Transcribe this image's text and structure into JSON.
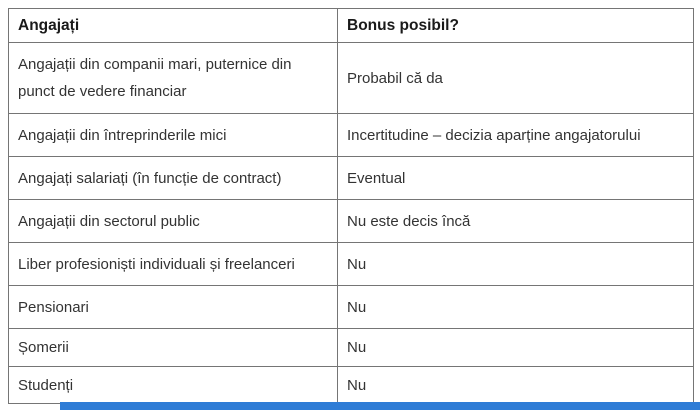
{
  "table": {
    "headers": [
      "Angajați",
      "Bonus posibil?"
    ],
    "rows": [
      [
        "Angajații din companii mari, puternice din punct de vedere financiar",
        "Probabil că da"
      ],
      [
        "Angajații din întreprinderile mici",
        "Incertitudine – decizia aparține angajatorului"
      ],
      [
        "Angajați salariați (în funcție de contract)",
        "Eventual"
      ],
      [
        "Angajații din sectorul public",
        "Nu este decis încă"
      ],
      [
        "Liber profesioniști individuali și freelanceri",
        "Nu"
      ],
      [
        "Pensionari",
        "Nu"
      ],
      [
        "Șomerii",
        "Nu"
      ],
      [
        "Studenți",
        "Nu"
      ]
    ]
  },
  "colors": {
    "table_border": "#757575",
    "text": "#333333",
    "header_text": "#1a1a1a",
    "bottom_bar": "#2e7cd6",
    "background": "#ffffff"
  }
}
